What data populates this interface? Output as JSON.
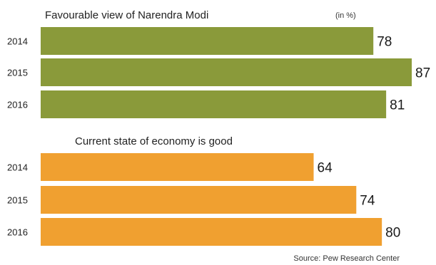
{
  "source": "Source: Pew Research Center",
  "colors": {
    "favourable": "#8a9a3a",
    "economy": "#f0a030",
    "background": "#ffffff"
  },
  "chart_data": [
    {
      "type": "bar",
      "orientation": "horizontal",
      "title": "Favourable view of Narendra Modi",
      "unit_label": "(in %)",
      "categories": [
        "2014",
        "2015",
        "2016"
      ],
      "values": [
        78,
        87,
        81
      ],
      "xlim": [
        0,
        90
      ],
      "grid": false
    },
    {
      "type": "bar",
      "orientation": "horizontal",
      "title": "Current state of economy is good",
      "categories": [
        "2014",
        "2015",
        "2016"
      ],
      "values": [
        64,
        74,
        80
      ],
      "xlim": [
        0,
        90
      ],
      "grid": false
    }
  ]
}
